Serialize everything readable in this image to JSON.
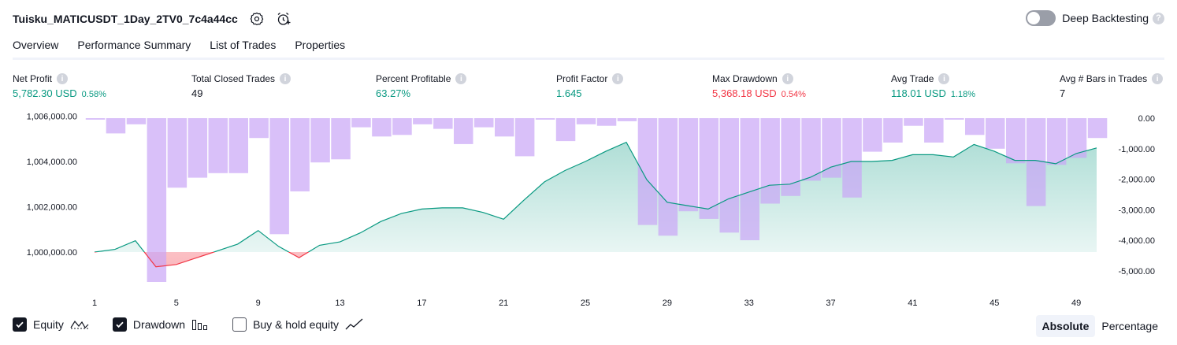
{
  "header": {
    "title": "Tuisku_MATICUSDT_1Day_2TV0_7c4a44cc",
    "settings_icon": "gear-icon",
    "alert_icon": "add-alert-icon",
    "deep_backtesting_label": "Deep Backtesting",
    "deep_backtesting_on": false
  },
  "tabs": [
    {
      "label": "Overview",
      "active": true
    },
    {
      "label": "Performance Summary",
      "active": false
    },
    {
      "label": "List of Trades",
      "active": false
    },
    {
      "label": "Properties",
      "active": false
    }
  ],
  "metrics": {
    "net_profit": {
      "label": "Net Profit",
      "value": "5,782.30 USD",
      "pct": "0.58%"
    },
    "total_closed_trades": {
      "label": "Total Closed Trades",
      "value": "49"
    },
    "percent_profitable": {
      "label": "Percent Profitable",
      "value": "63.27%"
    },
    "profit_factor": {
      "label": "Profit Factor",
      "value": "1.645"
    },
    "max_drawdown": {
      "label": "Max Drawdown",
      "value": "5,368.18 USD",
      "pct": "0.54%"
    },
    "avg_trade": {
      "label": "Avg Trade",
      "value": "118.01 USD",
      "pct": "1.18%"
    },
    "avg_bars": {
      "label": "Avg # Bars in Trades",
      "value": "7"
    }
  },
  "chart_data": {
    "type": "line+bar",
    "x_ticks": [
      "1",
      "5",
      "9",
      "13",
      "17",
      "21",
      "25",
      "29",
      "33",
      "37",
      "41",
      "45",
      "49"
    ],
    "left_axis_ticks": [
      "1,006,000.00",
      "1,004,000.00",
      "1,002,000.00",
      "1,000,000.00"
    ],
    "left_axis_values": [
      1006000,
      1004000,
      1002000,
      1000000
    ],
    "right_axis_ticks": [
      "0.00",
      "-1,000.00",
      "-2,000.00",
      "-3,000.00",
      "-4,000.00",
      "-5,000.00"
    ],
    "right_axis_values": [
      0,
      -1000,
      -2000,
      -3000,
      -4000,
      -5000
    ],
    "equity_baseline": 1000000,
    "series": [
      {
        "name": "Equity",
        "color_up": "#089981",
        "color_down": "#f23645",
        "x": [
          1,
          2,
          3,
          4,
          5,
          6,
          7,
          8,
          9,
          10,
          11,
          12,
          13,
          14,
          15,
          16,
          17,
          18,
          19,
          20,
          21,
          22,
          23,
          24,
          25,
          26,
          27,
          28,
          29,
          30,
          31,
          32,
          33,
          34,
          35,
          36,
          37,
          38,
          39,
          40,
          41,
          42,
          43,
          44,
          45,
          46,
          47,
          48,
          49,
          50
        ],
        "values": [
          1000000,
          1000120,
          1000500,
          999350,
          999450,
          999750,
          1000050,
          1000350,
          1000950,
          1000250,
          999750,
          1000300,
          1000450,
          1000850,
          1001350,
          1001700,
          1001900,
          1001950,
          1001950,
          1001750,
          1001450,
          1002300,
          1003100,
          1003600,
          1004000,
          1004450,
          1004850,
          1003200,
          1002200,
          1002050,
          1001900,
          1002350,
          1002650,
          1002950,
          1003000,
          1003300,
          1003750,
          1004000,
          1004000,
          1004050,
          1004300,
          1004300,
          1004200,
          1004750,
          1004450,
          1004050,
          1004050,
          1003900,
          1004350,
          1004600
        ]
      },
      {
        "name": "Drawdown",
        "color": "#c9a5f7",
        "x": [
          1,
          2,
          3,
          4,
          5,
          6,
          7,
          8,
          9,
          10,
          11,
          12,
          13,
          14,
          15,
          16,
          17,
          18,
          19,
          20,
          21,
          22,
          23,
          24,
          25,
          26,
          27,
          28,
          29,
          30,
          31,
          32,
          33,
          34,
          35,
          36,
          37,
          38,
          39,
          40,
          41,
          42,
          43,
          44,
          45,
          46,
          47,
          48,
          49,
          50
        ],
        "values": [
          -50,
          -500,
          -200,
          -5368,
          -2280,
          -1950,
          -1800,
          -1800,
          -650,
          -3800,
          -2400,
          -1450,
          -1350,
          -300,
          -600,
          -550,
          -200,
          -350,
          -850,
          -300,
          -600,
          -1250,
          -50,
          -750,
          -200,
          -250,
          -100,
          -3500,
          -3850,
          -3050,
          -3300,
          -3750,
          -4000,
          -2800,
          -2550,
          -2050,
          -1950,
          -2600,
          -1100,
          -800,
          -250,
          -800,
          -50,
          -550,
          -1000,
          -1480,
          -2880,
          -1530,
          -1300,
          -650
        ]
      }
    ]
  },
  "legend": {
    "equity_label": "Equity",
    "drawdown_label": "Drawdown",
    "buyhold_label": "Buy & hold equity",
    "equity_checked": true,
    "drawdown_checked": true,
    "buyhold_checked": false
  },
  "modes": {
    "absolute": "Absolute",
    "percentage": "Percentage",
    "active": "absolute"
  }
}
